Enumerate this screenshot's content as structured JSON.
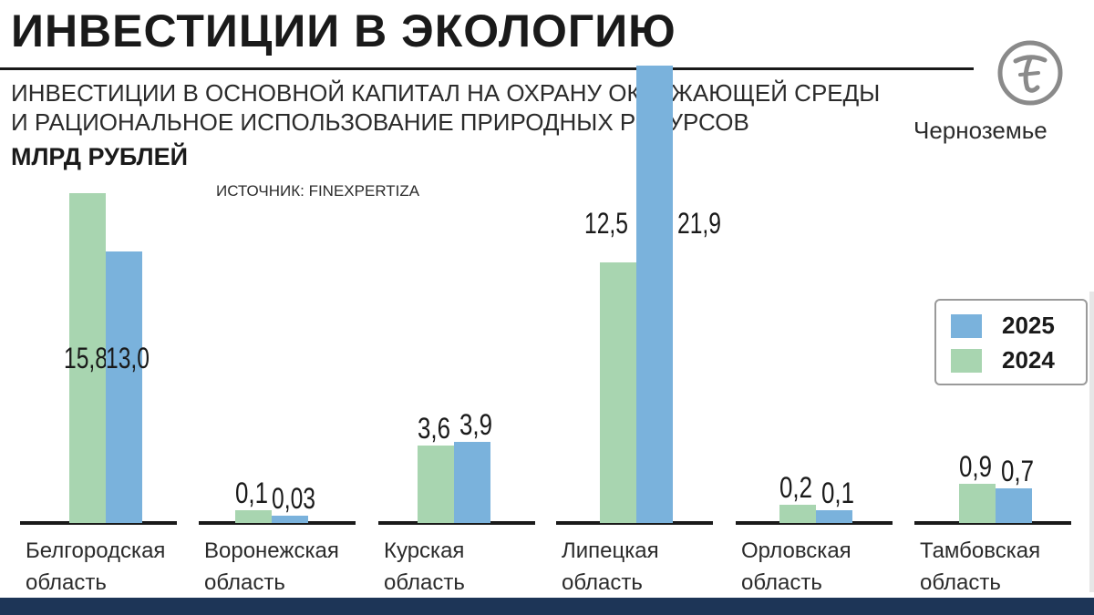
{
  "header": {
    "title": "ИНВЕСТИЦИИ В ЭКОЛОГИЮ",
    "subtitle_line1": "ИНВЕСТИЦИИ В ОСНОВНОЙ КАПИТАЛ НА ОХРАНУ ОКРУЖАЮЩЕЙ СРЕДЫ",
    "subtitle_line2": "И РАЦИОНАЛЬНОЕ ИСПОЛЬЗОВАНИЕ ПРИРОДНЫХ РЕСУРСОВ",
    "units": "МЛРД РУБЛЕЙ",
    "source": "ИСТОЧНИК: FINEXPERTIZA"
  },
  "brand": {
    "logo_text": "Черноземье",
    "logo_icon": "chernozemye-logo-icon"
  },
  "colors": {
    "series_2024": "#a8d5b0",
    "series_2025": "#7ab2dc",
    "axis": "#1a1a1a",
    "band": "#1d3557"
  },
  "chart_data": {
    "type": "bar",
    "title": "ИНВЕСТИЦИИ В ЭКОЛОГИЮ",
    "ylabel": "МЛРД РУБЛЕЙ",
    "categories": [
      [
        "Белгородская",
        "область"
      ],
      [
        "Воронежская",
        "область"
      ],
      [
        "Курская",
        "область"
      ],
      [
        "Липецкая",
        "область"
      ],
      [
        "Орловская",
        "область"
      ],
      [
        "Тамбовская",
        "область"
      ]
    ],
    "series": [
      {
        "name": "2024",
        "values": [
          15.8,
          0.1,
          3.6,
          12.5,
          0.2,
          0.9
        ],
        "labels": [
          "15,8",
          "0,1",
          "3,6",
          "12,5",
          "0,2",
          "0,9"
        ]
      },
      {
        "name": "2025",
        "values": [
          13.0,
          0.03,
          3.9,
          21.9,
          0.1,
          0.7
        ],
        "labels": [
          "13,0",
          "0,03",
          "3,9",
          "21,9",
          "0,1",
          "0,7"
        ]
      }
    ],
    "legend_position": "right",
    "grid": false
  },
  "legend": {
    "item_2025": "2025",
    "item_2024": "2024"
  }
}
